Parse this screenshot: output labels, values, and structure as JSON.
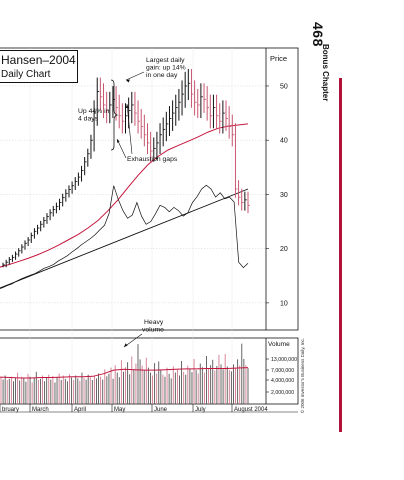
{
  "page": {
    "page_number": "468",
    "chapter": "Bonus Chapter",
    "copyright": "© 2006 Investor's Business Daily, Inc."
  },
  "chart_data": {
    "type": "line",
    "title": "Hansen–2004",
    "subtitle": "Daily Chart",
    "price_axis": {
      "label": "Price",
      "ticks": [
        10,
        20,
        30,
        40,
        50
      ],
      "range": [
        5,
        57
      ]
    },
    "volume_axis": {
      "label": "Volume",
      "tick_labels": [
        "13,000,000",
        "7,000,000",
        "4,000,000",
        "2,000,000"
      ]
    },
    "months": [
      "bruary",
      "March",
      "April",
      "May",
      "June",
      "July",
      "August 2004"
    ],
    "annotations": {
      "largest_gain": "Largest daily gain: up 14% in one day",
      "up_44": "Up 44% in 4 days",
      "exhaustion": "Exhaustion gaps",
      "heavy_volume": "Heavy volume"
    },
    "series": [
      {
        "kind": "price_bars",
        "values": [
          17,
          17.5,
          18,
          18.4,
          19,
          19.6,
          20.3,
          21,
          21.6,
          22.4,
          23.2,
          23.8,
          24.5,
          25.2,
          25.9,
          26.6,
          27.2,
          27.8,
          28.5,
          29.4,
          30.2,
          30.9,
          31.6,
          32.4,
          33.2,
          34.4,
          36,
          37.5,
          40,
          45,
          49,
          48,
          46.5,
          45.5,
          46.5,
          47.5,
          46,
          44.5,
          43.5,
          44.5,
          45.5,
          46.5,
          45,
          43.5,
          42.5,
          41,
          39.5,
          38,
          38.5,
          39.5,
          41,
          42,
          43,
          44,
          45,
          46,
          47,
          48.5,
          50,
          50.5,
          48.5,
          47,
          46.5,
          48,
          47.5,
          46,
          44.5,
          46,
          44.5,
          43.5,
          45,
          44,
          42.5,
          41,
          31,
          29.5,
          28.5,
          29,
          28
        ]
      },
      {
        "kind": "moving_average",
        "values": [
          16.5,
          17,
          17.6,
          18.2,
          18.9,
          19.7,
          20.6,
          21.6,
          22.6,
          23.8,
          25.2,
          27,
          29,
          31.3,
          33.5,
          35.5,
          37,
          38.2,
          39,
          39.8,
          40.6,
          41.5,
          42.2,
          42.6,
          42.8,
          43
        ]
      },
      {
        "kind": "relative_strength",
        "values": [
          12.5,
          12.8,
          13.2,
          13.5,
          14,
          14.4,
          14.8,
          15.1,
          15.4,
          15.9,
          16.4,
          16.7,
          17.1,
          17.7,
          18.2,
          18.7,
          19.4,
          20,
          20.7,
          21.3,
          21.9,
          22.6,
          23.5,
          24.3,
          26.5,
          31.6,
          29,
          27,
          25.6,
          26.2,
          28.5,
          26,
          24.5,
          25,
          26.4,
          28,
          27.6,
          26.8,
          27.6,
          27,
          26,
          26.6,
          28.5,
          29.6,
          31,
          31.7,
          31,
          29.5,
          30.3,
          29.2,
          29.5,
          28.6,
          17.5,
          16.5,
          17.3
        ]
      },
      {
        "kind": "rs_trendline",
        "values": [
          12.6,
          31
        ]
      },
      {
        "kind": "volume",
        "values": [
          6.4,
          5.9,
          6.9,
          5.8,
          6.1,
          6.6,
          5.5,
          6.3,
          7.6,
          5.7,
          6.6,
          6.2,
          5.4,
          7.3,
          6.6,
          5.2,
          6.4,
          7.8,
          5.8,
          6.1,
          6.9,
          5.5,
          6.3,
          7.1,
          5.9,
          6.8,
          5.2,
          6.5,
          7.4,
          5.8,
          6.9,
          6.1,
          5.5,
          7.2,
          6.4,
          5.8,
          6.9,
          6.2,
          5.6,
          7.6,
          6.3,
          5.9,
          7.1,
          6.5,
          5.8,
          6.8,
          6.2,
          7.4,
          6.6,
          5.9,
          8.4,
          6.7,
          7.3,
          8.8,
          6.1,
          9.4,
          7.6,
          6.5,
          10.6,
          7.8,
          8.9,
          10.1,
          7.2,
          11.5,
          8.4,
          9.8,
          14.5,
          10.8,
          9.3,
          8.1,
          11.2,
          8.8,
          7.6,
          6.9,
          9.9,
          7.4,
          10.3,
          8.2,
          7.1,
          6.6,
          8.8,
          7.3,
          6.2,
          9.1,
          7.6,
          8.3,
          6.9,
          10.4,
          7.8,
          7.1,
          9.3,
          8.5,
          7.7,
          10.9,
          8.2,
          7.4,
          9.8,
          8.9,
          7.6,
          11.6,
          8.7,
          9.4,
          10.7,
          8.1,
          9.2,
          11.9,
          9.6,
          8.4,
          12.1,
          9.1,
          8.2,
          7.9,
          9.6,
          8.6,
          10.8,
          9.3,
          14.6,
          10.9,
          9.4,
          8.7
        ]
      },
      {
        "kind": "volume_average",
        "values": [
          6.5,
          6.4,
          6.3,
          6.3,
          6.4,
          6.4,
          6.5,
          6.6,
          6.6,
          6.7,
          7.3,
          8.2,
          8.4,
          8.3,
          8.2,
          8.2,
          8.3,
          8.4,
          8.5,
          8.5,
          8.6,
          8.6,
          8.6,
          8.7,
          8.8
        ]
      }
    ]
  }
}
